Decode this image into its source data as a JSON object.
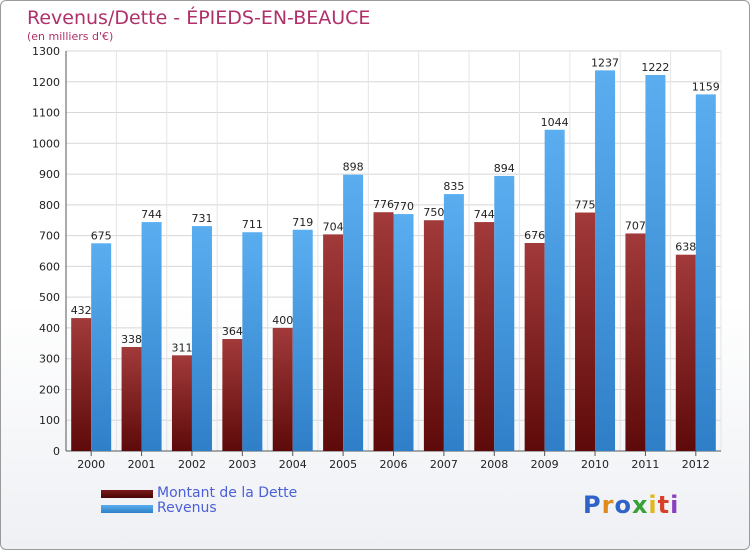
{
  "chart_data": {
    "type": "bar",
    "title": "Revenus/Dette - ÉPIEDS-EN-BEAUCE",
    "subtitle": "(en milliers d'€)",
    "categories": [
      "2000",
      "2001",
      "2002",
      "2003",
      "2004",
      "2005",
      "2006",
      "2007",
      "2008",
      "2009",
      "2010",
      "2011",
      "2012"
    ],
    "series": [
      {
        "name": "Montant de la Dette",
        "color": "#8b1f1f",
        "values": [
          432,
          338,
          311,
          364,
          400,
          704,
          776,
          750,
          744,
          676,
          775,
          707,
          638
        ]
      },
      {
        "name": "Revenus",
        "color": "#3a96e0",
        "values": [
          675,
          744,
          731,
          711,
          719,
          898,
          770,
          835,
          894,
          1044,
          1237,
          1222,
          1159
        ]
      }
    ],
    "ylim": [
      0,
      1300
    ],
    "yticks": [
      0,
      100,
      200,
      300,
      400,
      500,
      600,
      700,
      800,
      900,
      1000,
      1100,
      1200,
      1300
    ],
    "grid": true,
    "legend_position": "bottom-left"
  },
  "branding": {
    "logo_text": "Proxiti",
    "logo_colors": [
      "#2f63c8",
      "#e08a1e",
      "#2f63c8",
      "#3aa13a",
      "#e0b81e",
      "#d8402a",
      "#8a3fc0"
    ]
  }
}
